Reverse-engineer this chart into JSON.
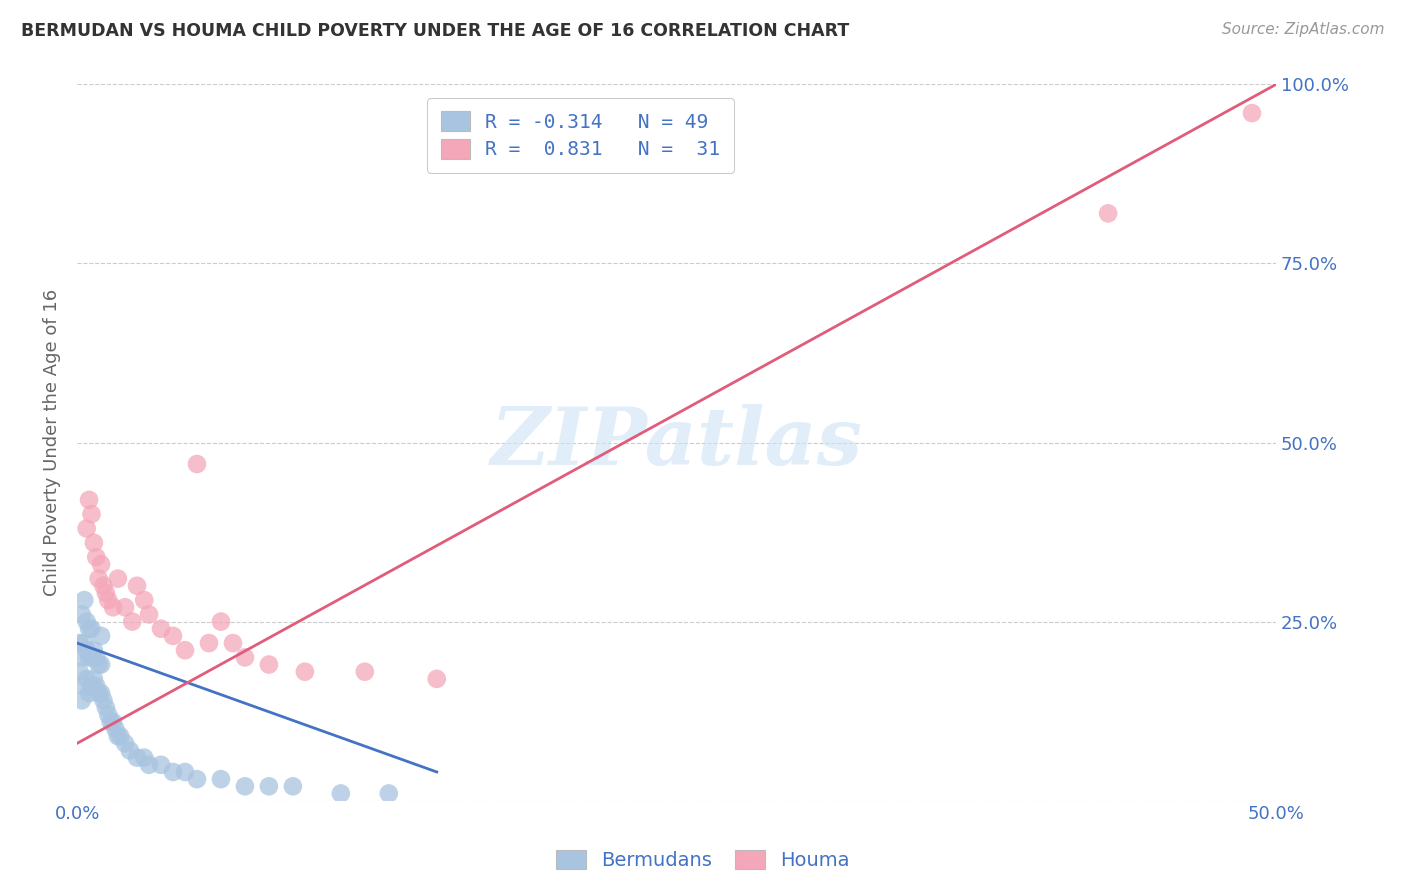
{
  "title": "BERMUDAN VS HOUMA CHILD POVERTY UNDER THE AGE OF 16 CORRELATION CHART",
  "source": "Source: ZipAtlas.com",
  "ylabel": "Child Poverty Under the Age of 16",
  "xlim": [
    0.0,
    0.5
  ],
  "ylim": [
    0.0,
    1.0
  ],
  "yticks": [
    0.0,
    0.25,
    0.5,
    0.75,
    1.0
  ],
  "xticks": [
    0.0,
    0.1,
    0.2,
    0.3,
    0.4,
    0.5
  ],
  "legend_labels": [
    "Bermudans",
    "Houma"
  ],
  "bermudans_color": "#a8c4e0",
  "houma_color": "#f4a7b9",
  "bermudans_line_color": "#4472c4",
  "houma_line_color": "#e05c7a",
  "watermark_color": "#cde4f5",
  "background_color": "#ffffff",
  "grid_color": "#cccccc",
  "title_color": "#333333",
  "axis_label_color": "#666666",
  "tick_color": "#4472c4",
  "bermudans_x": [
    0.001,
    0.001,
    0.002,
    0.002,
    0.002,
    0.003,
    0.003,
    0.003,
    0.004,
    0.004,
    0.004,
    0.005,
    0.005,
    0.005,
    0.006,
    0.006,
    0.006,
    0.007,
    0.007,
    0.008,
    0.008,
    0.009,
    0.009,
    0.01,
    0.01,
    0.01,
    0.011,
    0.012,
    0.013,
    0.014,
    0.015,
    0.016,
    0.017,
    0.018,
    0.02,
    0.022,
    0.025,
    0.028,
    0.03,
    0.035,
    0.04,
    0.045,
    0.05,
    0.06,
    0.07,
    0.08,
    0.09,
    0.11,
    0.13
  ],
  "bermudans_y": [
    0.18,
    0.22,
    0.14,
    0.2,
    0.26,
    0.16,
    0.22,
    0.28,
    0.17,
    0.21,
    0.25,
    0.15,
    0.2,
    0.24,
    0.16,
    0.2,
    0.24,
    0.17,
    0.21,
    0.16,
    0.2,
    0.15,
    0.19,
    0.15,
    0.19,
    0.23,
    0.14,
    0.13,
    0.12,
    0.11,
    0.11,
    0.1,
    0.09,
    0.09,
    0.08,
    0.07,
    0.06,
    0.06,
    0.05,
    0.05,
    0.04,
    0.04,
    0.03,
    0.03,
    0.02,
    0.02,
    0.02,
    0.01,
    0.01
  ],
  "houma_x": [
    0.004,
    0.005,
    0.006,
    0.007,
    0.008,
    0.009,
    0.01,
    0.011,
    0.012,
    0.013,
    0.015,
    0.017,
    0.02,
    0.023,
    0.025,
    0.028,
    0.03,
    0.035,
    0.04,
    0.045,
    0.05,
    0.055,
    0.06,
    0.065,
    0.07,
    0.08,
    0.095,
    0.12,
    0.15,
    0.43,
    0.49
  ],
  "houma_y": [
    0.38,
    0.42,
    0.4,
    0.36,
    0.34,
    0.31,
    0.33,
    0.3,
    0.29,
    0.28,
    0.27,
    0.31,
    0.27,
    0.25,
    0.3,
    0.28,
    0.26,
    0.24,
    0.23,
    0.21,
    0.47,
    0.22,
    0.25,
    0.22,
    0.2,
    0.19,
    0.18,
    0.18,
    0.17,
    0.82,
    0.96
  ],
  "berm_line_x": [
    0.0,
    0.15
  ],
  "berm_line_y": [
    0.22,
    0.04
  ],
  "houma_line_x": [
    0.0,
    0.5
  ],
  "houma_line_y": [
    0.08,
    1.0
  ]
}
